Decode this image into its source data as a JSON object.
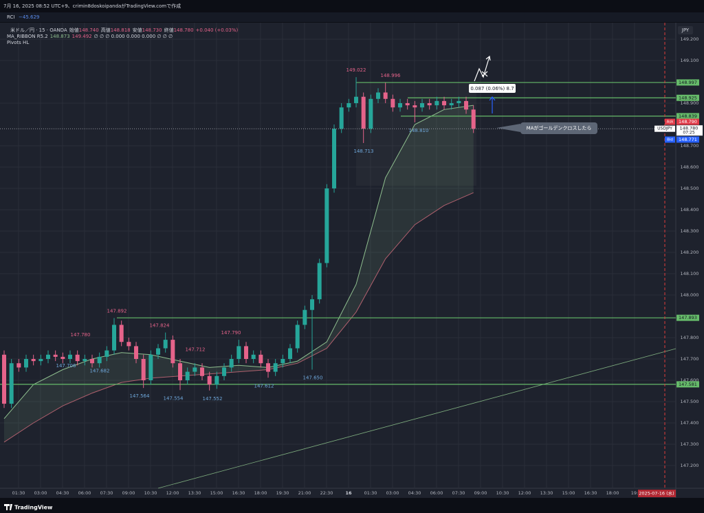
{
  "header": {
    "created": "7月 16, 2025 08:52 UTC+9、crimin8doskoipandaがTradingView.comで作成",
    "indicator": "RCI",
    "indicator_value": "−45.629",
    "symbol": "米ドル／円 · 15 · OANDA",
    "ohlc": [
      {
        "label": "始値",
        "value": "148.740"
      },
      {
        "label": "高値",
        "value": "148.818"
      },
      {
        "label": "安値",
        "value": "148.730"
      },
      {
        "label": "終値",
        "value": "148.780"
      }
    ],
    "change": "+0.040 (+0.03%)",
    "ma_name": "MA_RIBBON R5.2",
    "ma_values": [
      "148.873",
      "149.492"
    ],
    "ma_rest": "∅ ∅ ∅ 0.000 0.000 0.000 ∅ ∅ ∅",
    "pivots": "Pivots HL"
  },
  "chart_data": {
    "type": "candlestick",
    "currency": "JPY",
    "open": [
      147.72,
      147.49,
      147.68,
      147.66,
      147.7,
      147.69,
      147.7,
      147.72,
      147.71,
      147.7,
      147.72,
      147.69,
      147.7,
      147.68,
      147.71,
      147.74,
      147.86,
      147.78,
      147.76,
      147.7,
      147.6,
      147.72,
      147.75,
      147.79,
      147.68,
      147.6,
      147.64,
      147.66,
      147.62,
      147.58,
      147.62,
      147.66,
      147.7,
      147.76,
      147.7,
      147.72,
      147.68,
      147.64,
      147.68,
      147.7,
      147.75,
      147.86,
      147.93,
      147.98,
      148.15,
      148.5,
      148.78,
      148.88,
      148.9,
      148.93,
      148.78,
      148.92,
      148.95,
      148.92,
      148.88,
      148.9,
      148.89,
      148.88,
      148.9,
      148.89,
      148.91,
      148.89,
      148.9,
      148.91,
      148.87
    ],
    "high": [
      147.74,
      147.7,
      147.7,
      147.72,
      147.72,
      147.72,
      147.74,
      147.74,
      147.73,
      147.74,
      147.74,
      147.72,
      147.72,
      147.73,
      147.76,
      147.892,
      147.88,
      147.8,
      147.78,
      147.72,
      147.74,
      147.77,
      147.824,
      147.81,
      147.7,
      147.66,
      147.68,
      147.68,
      147.64,
      147.64,
      147.68,
      147.72,
      147.79,
      147.78,
      147.74,
      147.74,
      147.7,
      147.7,
      147.72,
      147.77,
      147.88,
      147.95,
      148.0,
      148.17,
      148.52,
      148.8,
      148.9,
      148.92,
      149.022,
      148.95,
      148.94,
      148.97,
      148.996,
      148.94,
      148.92,
      148.92,
      148.91,
      148.92,
      148.92,
      148.93,
      148.93,
      148.92,
      148.93,
      148.93,
      148.89
    ],
    "low": [
      147.47,
      147.47,
      147.64,
      147.64,
      147.67,
      147.67,
      147.68,
      147.69,
      147.68,
      147.68,
      147.67,
      147.67,
      147.66,
      147.66,
      147.69,
      147.72,
      147.76,
      147.74,
      147.68,
      147.564,
      147.58,
      147.7,
      147.73,
      147.66,
      147.554,
      147.58,
      147.62,
      147.6,
      147.552,
      147.56,
      147.6,
      147.64,
      147.68,
      147.68,
      147.68,
      147.66,
      147.612,
      147.62,
      147.66,
      147.68,
      147.73,
      147.84,
      147.65,
      147.96,
      148.13,
      148.48,
      148.76,
      148.86,
      148.88,
      148.713,
      148.76,
      148.9,
      148.9,
      148.86,
      148.86,
      148.87,
      148.81,
      148.86,
      148.87,
      148.87,
      148.87,
      148.87,
      148.88,
      148.85,
      148.76
    ],
    "close": [
      147.49,
      147.68,
      147.66,
      147.7,
      147.69,
      147.7,
      147.72,
      147.71,
      147.7,
      147.72,
      147.69,
      147.7,
      147.68,
      147.71,
      147.74,
      147.86,
      147.78,
      147.76,
      147.7,
      147.6,
      147.72,
      147.75,
      147.79,
      147.68,
      147.6,
      147.64,
      147.66,
      147.62,
      147.58,
      147.62,
      147.66,
      147.7,
      147.76,
      147.7,
      147.72,
      147.68,
      147.64,
      147.68,
      147.7,
      147.75,
      147.86,
      147.93,
      147.98,
      148.15,
      148.5,
      148.78,
      148.88,
      148.9,
      148.93,
      148.78,
      148.92,
      148.95,
      148.92,
      148.88,
      148.9,
      148.89,
      148.88,
      148.9,
      148.89,
      148.91,
      148.89,
      148.9,
      148.91,
      148.87,
      148.78
    ],
    "up_color": "#26a69a",
    "down_color": "#e5638a",
    "ma_ribbon": [
      {
        "color": "#8fbf8f",
        "values": [
          147.42,
          147.58,
          147.65,
          147.7,
          147.73,
          147.72,
          147.69,
          147.66,
          147.67,
          147.66,
          147.69,
          147.78,
          148.05,
          148.55,
          148.8,
          148.87,
          148.89
        ]
      },
      {
        "color": "#b0606e",
        "values": [
          147.31,
          147.4,
          147.48,
          147.54,
          147.59,
          147.61,
          147.62,
          147.63,
          147.64,
          147.65,
          147.68,
          147.75,
          147.92,
          148.17,
          148.33,
          148.42,
          148.48
        ]
      }
    ],
    "ylim": [
      147.1,
      149.3
    ],
    "yticks": [
      {
        "value": 149.2,
        "label": "149.200"
      },
      {
        "value": 149.1,
        "label": "149.100"
      },
      {
        "value": 148.9,
        "label": "148.900"
      },
      {
        "value": 148.7,
        "label": "148.700"
      },
      {
        "value": 148.6,
        "label": "148.600"
      },
      {
        "value": 148.5,
        "label": "148.500"
      },
      {
        "value": 148.4,
        "label": "148.400"
      },
      {
        "value": 148.3,
        "label": "148.300"
      },
      {
        "value": 148.2,
        "label": "148.200"
      },
      {
        "value": 148.1,
        "label": "148.100"
      },
      {
        "value": 148,
        "label": "148.000"
      },
      {
        "value": 147.8,
        "label": "147.800"
      },
      {
        "value": 147.7,
        "label": "147.700"
      },
      {
        "value": 147.6,
        "label": "147.600"
      },
      {
        "value": 147.5,
        "label": "147.500"
      },
      {
        "value": 147.4,
        "label": "147.400"
      },
      {
        "value": 147.3,
        "label": "147.300"
      },
      {
        "value": 147.2,
        "label": "147.200"
      }
    ],
    "time_labels": [
      "01:30",
      "03:00",
      "04:30",
      "06:00",
      "07:30",
      "09:00",
      "10:30",
      "12:00",
      "13:30",
      "15:00",
      "16:30",
      "18:00",
      "19:30",
      "21:00",
      "22:30",
      "16",
      "01:30",
      "03:00",
      "04:30",
      "06:00",
      "07:30",
      "09:00",
      "10:30",
      "12:00",
      "13:30",
      "15:00",
      "16:30",
      "18:00",
      "19:"
    ],
    "pivot_highs": [
      {
        "value": 147.78,
        "label": "147.780"
      },
      {
        "value": 147.892,
        "label": "147.892"
      },
      {
        "value": 147.824,
        "label": "147.824"
      },
      {
        "value": 147.712,
        "label": "147.712"
      },
      {
        "value": 147.79,
        "label": "147.790"
      },
      {
        "value": 149.022,
        "label": "149.022"
      },
      {
        "value": 148.996,
        "label": "148.996"
      }
    ],
    "pivot_lows": [
      {
        "value": 147.706,
        "label": "147.706"
      },
      {
        "value": 147.682,
        "label": "147.682"
      },
      {
        "value": 147.564,
        "label": "147.564"
      },
      {
        "value": 147.554,
        "label": "147.554"
      },
      {
        "value": 147.552,
        "label": "147.552"
      },
      {
        "value": 147.612,
        "label": "147.612"
      },
      {
        "value": 147.65,
        "label": "147.650"
      },
      {
        "value": 148.713,
        "label": "148.713"
      },
      {
        "value": 148.81,
        "label": "148.810"
      }
    ],
    "levels": [
      {
        "value": 148.997,
        "label": "148.997"
      },
      {
        "value": 148.925,
        "label": "148.925"
      },
      {
        "value": 148.839,
        "label": "148.839"
      },
      {
        "value": 147.893,
        "label": "147.893"
      },
      {
        "value": 147.581,
        "label": "147.581"
      }
    ],
    "level_color": "#66bb6a",
    "ask": {
      "text": "Ask",
      "value": 148.79,
      "label": "148.790"
    },
    "last": {
      "symbol": "USDJPY",
      "value": 148.78,
      "label": "148.780",
      "countdown": "07:25"
    },
    "bid": {
      "text": "Bid",
      "value": 148.771,
      "label": "148.771"
    },
    "measure": "0.087 (0.06%) 8.7",
    "callout": "MAがゴールデンクロスしたら",
    "date_badge": "2025-07-16 (水)"
  },
  "footer": "TradingView"
}
